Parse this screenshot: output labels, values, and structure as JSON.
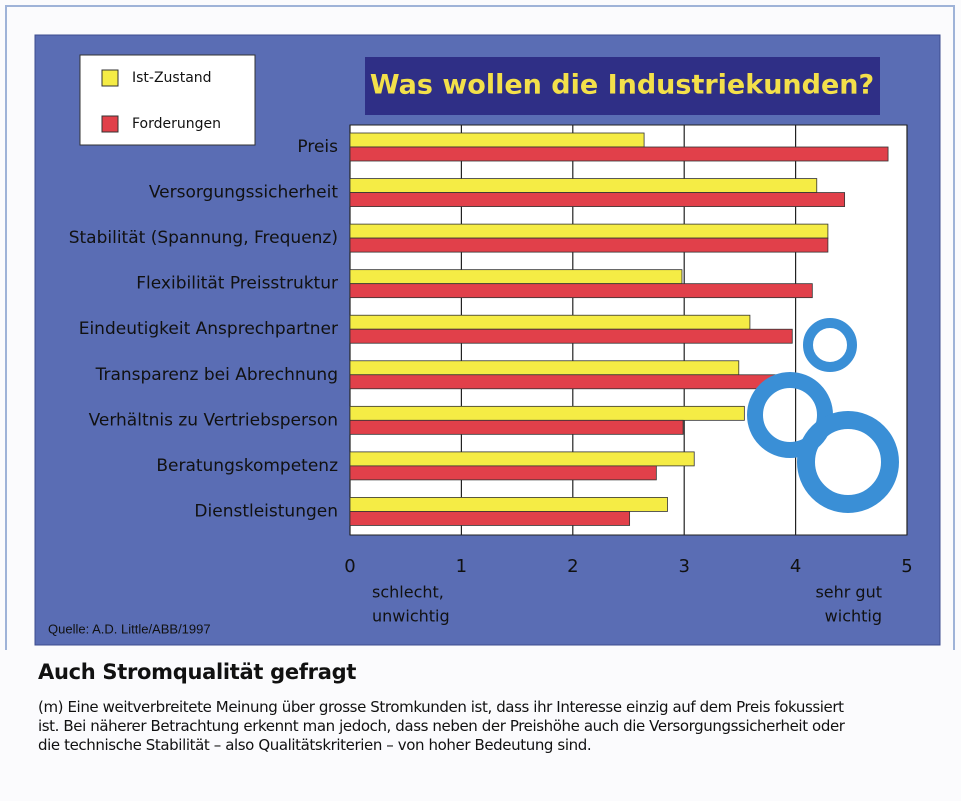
{
  "chart_data": {
    "type": "bar",
    "orientation": "horizontal",
    "title": "Was wollen die Industriekunden?",
    "categories": [
      "Preis",
      "Versorgungssicherheit",
      "Stabilität (Spannung, Frequenz)",
      "Flexibilität Preisstruktur",
      "Eindeutigkeit Ansprechpartner",
      "Transparenz bei Abrechnung",
      "Verhältnis zu Vertriebsperson",
      "Beratungskompetenz",
      "Dienstleistungen"
    ],
    "series": [
      {
        "name": "Ist-Zustand",
        "color": "#f5ec45",
        "values": [
          2.64,
          4.19,
          4.29,
          2.98,
          3.59,
          3.49,
          3.54,
          3.09,
          2.85
        ]
      },
      {
        "name": "Forderungen",
        "color": "#e1404a",
        "values": [
          4.83,
          4.44,
          4.29,
          4.15,
          3.97,
          3.84,
          2.99,
          2.75,
          2.51
        ]
      }
    ],
    "xlim": [
      0,
      5
    ],
    "xticks": [
      0,
      1,
      2,
      3,
      4,
      5
    ],
    "grid": true,
    "axis_annotations": {
      "low": [
        "schlecht,",
        "unwichtig"
      ],
      "high": [
        "sehr gut",
        "wichtig"
      ]
    },
    "source": "Quelle: A.D. Little/ABB/1997"
  },
  "article": {
    "heading": "Auch Stromqualität gefragt",
    "body": [
      "(m) Eine weitverbreitete Meinung über grosse Stromkunden ist, dass ihr Interesse einzig auf dem Preis fokussiert",
      "ist. Bei näherer Betrachtung erkennt man jedoch, dass neben der Preishöhe auch die Versorgungssicherheit oder",
      "die technische Stabilität – also Qualitätskriterien – von hoher Bedeutung sind."
    ]
  }
}
